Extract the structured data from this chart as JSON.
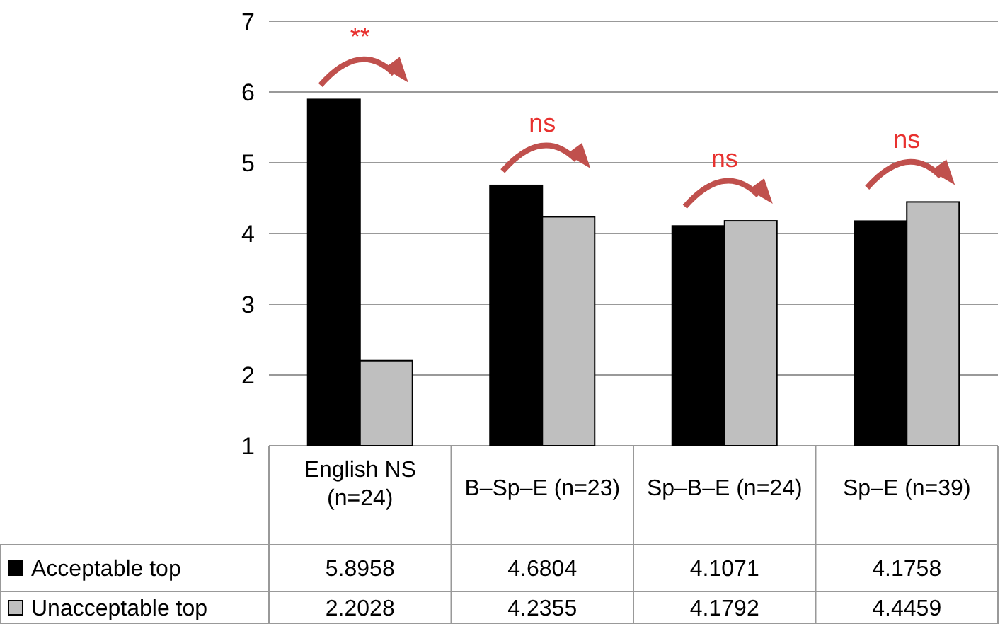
{
  "chart_data": {
    "type": "bar",
    "categories": [
      "English NS (n=24)",
      "B–Sp–E (n=23)",
      "Sp–B–E (n=24)",
      "Sp–E (n=39)"
    ],
    "series": [
      {
        "name": "Acceptable top",
        "color": "#000000",
        "values": [
          5.8958,
          4.6804,
          4.1071,
          4.1758
        ]
      },
      {
        "name": "Unacceptable top",
        "color": "#bfbfbf",
        "values": [
          2.2028,
          4.2355,
          4.1792,
          4.4459
        ]
      }
    ],
    "ylim": [
      1,
      7
    ],
    "yticks": [
      1,
      2,
      3,
      4,
      5,
      6,
      7
    ],
    "grid": "y",
    "legend": "bottom left",
    "data_labels": true,
    "annotations": [
      "**",
      "ns",
      "ns",
      "ns"
    ]
  }
}
